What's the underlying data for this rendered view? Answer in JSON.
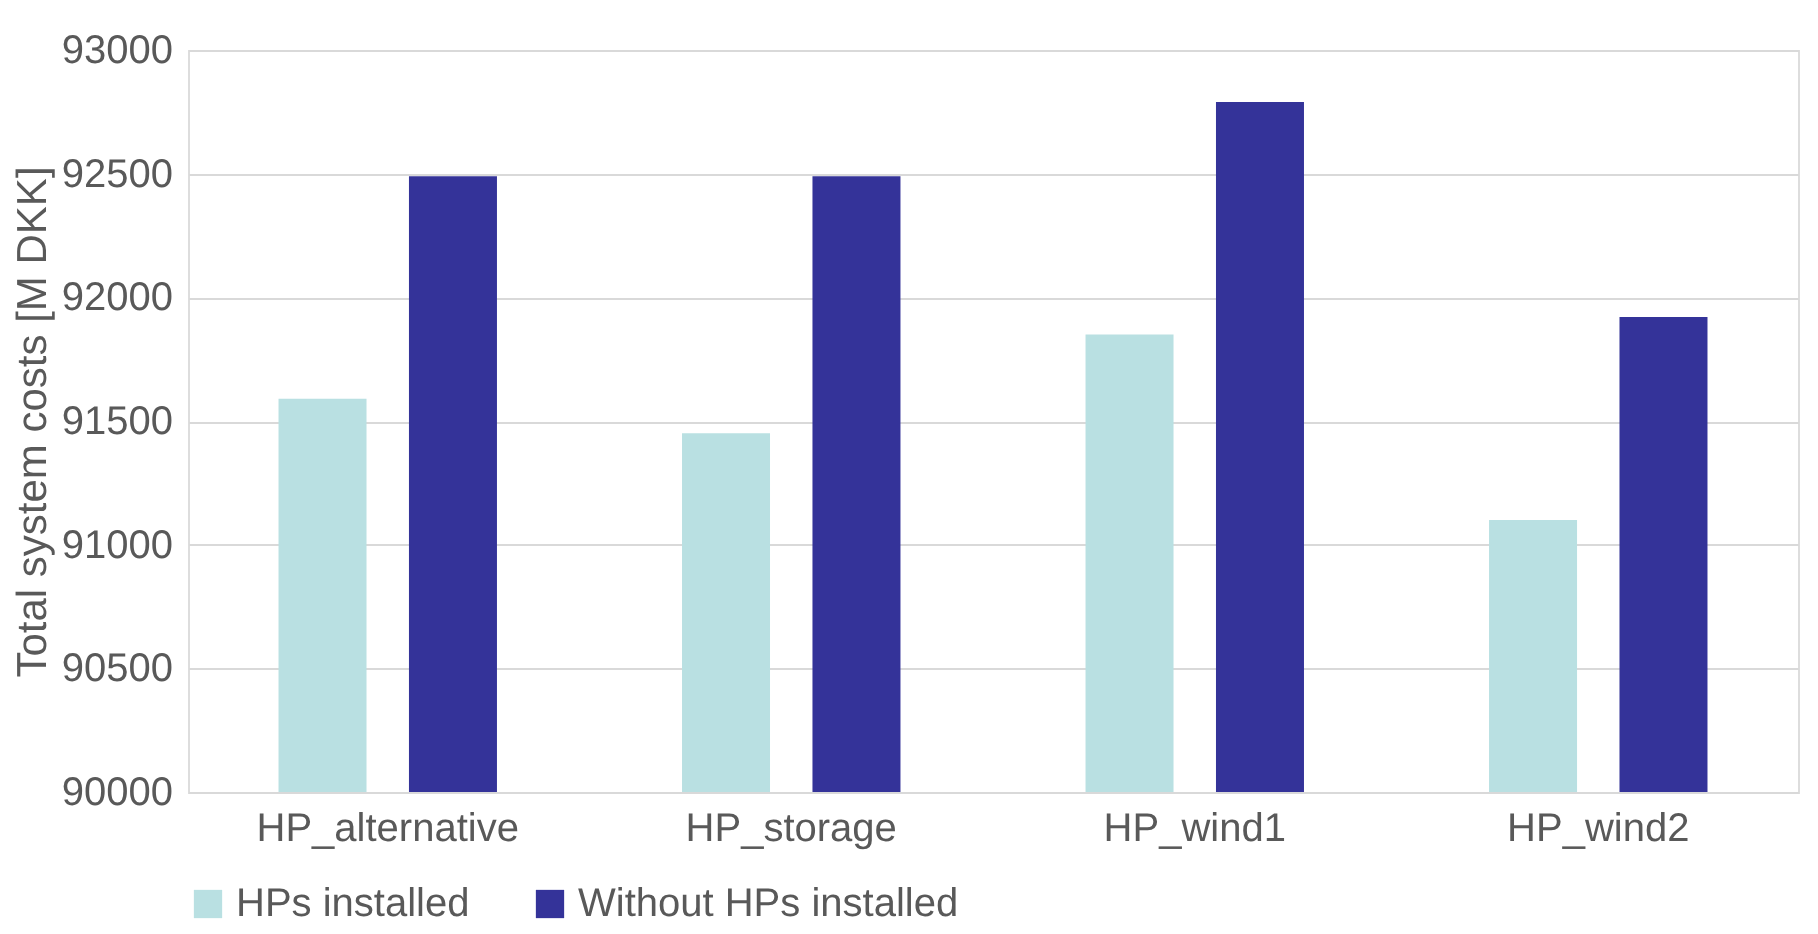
{
  "chart_data": {
    "type": "bar",
    "ylabel": "Total system costs [M DKK]",
    "categories": [
      "HP_alternative",
      "HP_storage",
      "HP_wind1",
      "HP_wind2"
    ],
    "series": [
      {
        "name": "HPs installed",
        "color": "#b9e0e2",
        "values": [
          91590,
          91450,
          91850,
          91100
        ]
      },
      {
        "name": "Without HPs installed",
        "color": "#343399",
        "values": [
          92490,
          92490,
          92790,
          91920
        ]
      }
    ],
    "ylim": [
      90000,
      93000
    ],
    "yticks": [
      90000,
      90500,
      91000,
      91500,
      92000,
      92500,
      93000
    ],
    "grid": "y",
    "legend": "bottom"
  }
}
